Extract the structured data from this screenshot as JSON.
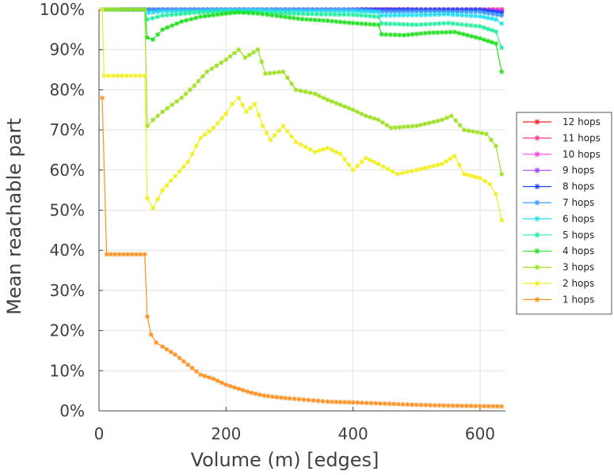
{
  "chart_data": {
    "type": "line",
    "xlabel": "Volume (m) [edges]",
    "ylabel": "Mean reachable part",
    "xlim": [
      0,
      640
    ],
    "ylim": [
      0,
      100
    ],
    "xticks": [
      0,
      200,
      400,
      600
    ],
    "yticks": [
      0,
      10,
      20,
      30,
      40,
      50,
      60,
      70,
      80,
      90,
      100
    ],
    "ytick_format": "percent",
    "grid": true,
    "legend": "right",
    "series": [
      {
        "name": "12 hops",
        "color": "#ff2020",
        "values": [
          [
            5,
            100
          ],
          [
            100,
            100
          ],
          [
            200,
            100
          ],
          [
            300,
            100
          ],
          [
            400,
            100
          ],
          [
            500,
            100
          ],
          [
            600,
            100
          ],
          [
            634,
            100
          ]
        ]
      },
      {
        "name": "11 hops",
        "color": "#ff3a8c",
        "values": [
          [
            5,
            100
          ],
          [
            100,
            100
          ],
          [
            200,
            100
          ],
          [
            300,
            100
          ],
          [
            400,
            100
          ],
          [
            500,
            100
          ],
          [
            600,
            100
          ],
          [
            634,
            100
          ]
        ]
      },
      {
        "name": "10 hops",
        "color": "#ff40e0",
        "values": [
          [
            5,
            100
          ],
          [
            100,
            100
          ],
          [
            200,
            100
          ],
          [
            300,
            100
          ],
          [
            400,
            100
          ],
          [
            500,
            100
          ],
          [
            600,
            100
          ],
          [
            634,
            99.8
          ]
        ]
      },
      {
        "name": "9 hops",
        "color": "#a040ff",
        "values": [
          [
            5,
            100
          ],
          [
            100,
            100
          ],
          [
            200,
            100
          ],
          [
            300,
            100
          ],
          [
            400,
            100
          ],
          [
            440,
            100
          ],
          [
            500,
            100
          ],
          [
            600,
            100
          ],
          [
            634,
            99.5
          ]
        ]
      },
      {
        "name": "8 hops",
        "color": "#2040ff",
        "values": [
          [
            5,
            100
          ],
          [
            100,
            100
          ],
          [
            200,
            100
          ],
          [
            300,
            100
          ],
          [
            400,
            100
          ],
          [
            440,
            100
          ],
          [
            500,
            100
          ],
          [
            600,
            100
          ],
          [
            634,
            99.2
          ]
        ]
      },
      {
        "name": "7 hops",
        "color": "#3a9cff",
        "values": [
          [
            5,
            100
          ],
          [
            100,
            100
          ],
          [
            200,
            100
          ],
          [
            300,
            100
          ],
          [
            400,
            100
          ],
          [
            440,
            99.5
          ],
          [
            500,
            99.5
          ],
          [
            600,
            99.4
          ],
          [
            634,
            98.5
          ]
        ]
      },
      {
        "name": "6 hops",
        "color": "#20e0f0",
        "values": [
          [
            5,
            100
          ],
          [
            72,
            100
          ],
          [
            78,
            99.2
          ],
          [
            100,
            99.5
          ],
          [
            150,
            99.6
          ],
          [
            200,
            99.8
          ],
          [
            250,
            99.8
          ],
          [
            300,
            99.6
          ],
          [
            350,
            99.6
          ],
          [
            400,
            99.6
          ],
          [
            440,
            99.4
          ],
          [
            445,
            98.5
          ],
          [
            500,
            98.6
          ],
          [
            550,
            98.8
          ],
          [
            600,
            98.3
          ],
          [
            625,
            97.5
          ],
          [
            634,
            96.5
          ]
        ]
      },
      {
        "name": "5 hops",
        "color": "#20f0a0",
        "values": [
          [
            5,
            100
          ],
          [
            72,
            100
          ],
          [
            76,
            97.5
          ],
          [
            100,
            98.5
          ],
          [
            150,
            99.2
          ],
          [
            200,
            99.5
          ],
          [
            250,
            99.3
          ],
          [
            300,
            99.0
          ],
          [
            350,
            98.8
          ],
          [
            400,
            98.7
          ],
          [
            440,
            98.2
          ],
          [
            445,
            96.5
          ],
          [
            500,
            96.2
          ],
          [
            550,
            96.6
          ],
          [
            600,
            95.8
          ],
          [
            625,
            94.5
          ],
          [
            634,
            90.5
          ]
        ]
      },
      {
        "name": "4 hops",
        "color": "#20e020",
        "values": [
          [
            5,
            100
          ],
          [
            72,
            100
          ],
          [
            76,
            93
          ],
          [
            85,
            92.5
          ],
          [
            100,
            95
          ],
          [
            130,
            97
          ],
          [
            160,
            98.2
          ],
          [
            200,
            99
          ],
          [
            220,
            99.3
          ],
          [
            250,
            99
          ],
          [
            280,
            98.4
          ],
          [
            320,
            97.6
          ],
          [
            360,
            97.2
          ],
          [
            400,
            96.6
          ],
          [
            440,
            96.2
          ],
          [
            445,
            93.8
          ],
          [
            480,
            93.6
          ],
          [
            520,
            94.2
          ],
          [
            560,
            94.4
          ],
          [
            600,
            92.8
          ],
          [
            625,
            91.5
          ],
          [
            634,
            84.5
          ]
        ]
      },
      {
        "name": "3 hops",
        "color": "#9ce020",
        "values": [
          [
            5,
            100
          ],
          [
            72,
            100
          ],
          [
            76,
            71
          ],
          [
            85,
            72.5
          ],
          [
            100,
            74.5
          ],
          [
            130,
            78
          ],
          [
            150,
            81
          ],
          [
            170,
            84.5
          ],
          [
            200,
            87.5
          ],
          [
            220,
            90
          ],
          [
            230,
            88
          ],
          [
            250,
            90
          ],
          [
            262,
            84
          ],
          [
            290,
            84.5
          ],
          [
            310,
            80
          ],
          [
            340,
            79
          ],
          [
            360,
            77.5
          ],
          [
            400,
            75
          ],
          [
            420,
            73.5
          ],
          [
            440,
            72.5
          ],
          [
            460,
            70.5
          ],
          [
            500,
            71
          ],
          [
            540,
            72.5
          ],
          [
            555,
            73.5
          ],
          [
            575,
            70
          ],
          [
            610,
            69
          ],
          [
            625,
            66
          ],
          [
            634,
            59
          ]
        ]
      },
      {
        "name": "2 hops",
        "color": "#f0f020",
        "values": [
          [
            5,
            100
          ],
          [
            8,
            83.5
          ],
          [
            72,
            83.5
          ],
          [
            76,
            53
          ],
          [
            85,
            50.5
          ],
          [
            100,
            55
          ],
          [
            120,
            58.5
          ],
          [
            140,
            62
          ],
          [
            160,
            68
          ],
          [
            180,
            70.5
          ],
          [
            200,
            74
          ],
          [
            210,
            76.5
          ],
          [
            220,
            78
          ],
          [
            232,
            74.5
          ],
          [
            245,
            76.5
          ],
          [
            258,
            71
          ],
          [
            270,
            67.5
          ],
          [
            290,
            71
          ],
          [
            310,
            67
          ],
          [
            340,
            64.5
          ],
          [
            360,
            65.5
          ],
          [
            380,
            64
          ],
          [
            400,
            60
          ],
          [
            420,
            63
          ],
          [
            440,
            61.5
          ],
          [
            470,
            59
          ],
          [
            500,
            60
          ],
          [
            540,
            61.5
          ],
          [
            560,
            63.5
          ],
          [
            575,
            59
          ],
          [
            600,
            58
          ],
          [
            615,
            56.5
          ],
          [
            625,
            54
          ],
          [
            634,
            47.5
          ]
        ]
      },
      {
        "name": "1 hops",
        "color": "#ff9020",
        "values": [
          [
            5,
            78
          ],
          [
            12,
            39
          ],
          [
            72,
            39
          ],
          [
            76,
            23.5
          ],
          [
            82,
            19
          ],
          [
            90,
            17
          ],
          [
            100,
            16
          ],
          [
            120,
            14
          ],
          [
            140,
            11.5
          ],
          [
            160,
            9
          ],
          [
            180,
            8
          ],
          [
            200,
            6.5
          ],
          [
            220,
            5.5
          ],
          [
            240,
            4.5
          ],
          [
            260,
            3.8
          ],
          [
            280,
            3.4
          ],
          [
            300,
            3.1
          ],
          [
            330,
            2.7
          ],
          [
            360,
            2.3
          ],
          [
            400,
            2.1
          ],
          [
            450,
            1.8
          ],
          [
            500,
            1.5
          ],
          [
            550,
            1.3
          ],
          [
            600,
            1.2
          ],
          [
            634,
            1.1
          ]
        ]
      }
    ]
  }
}
